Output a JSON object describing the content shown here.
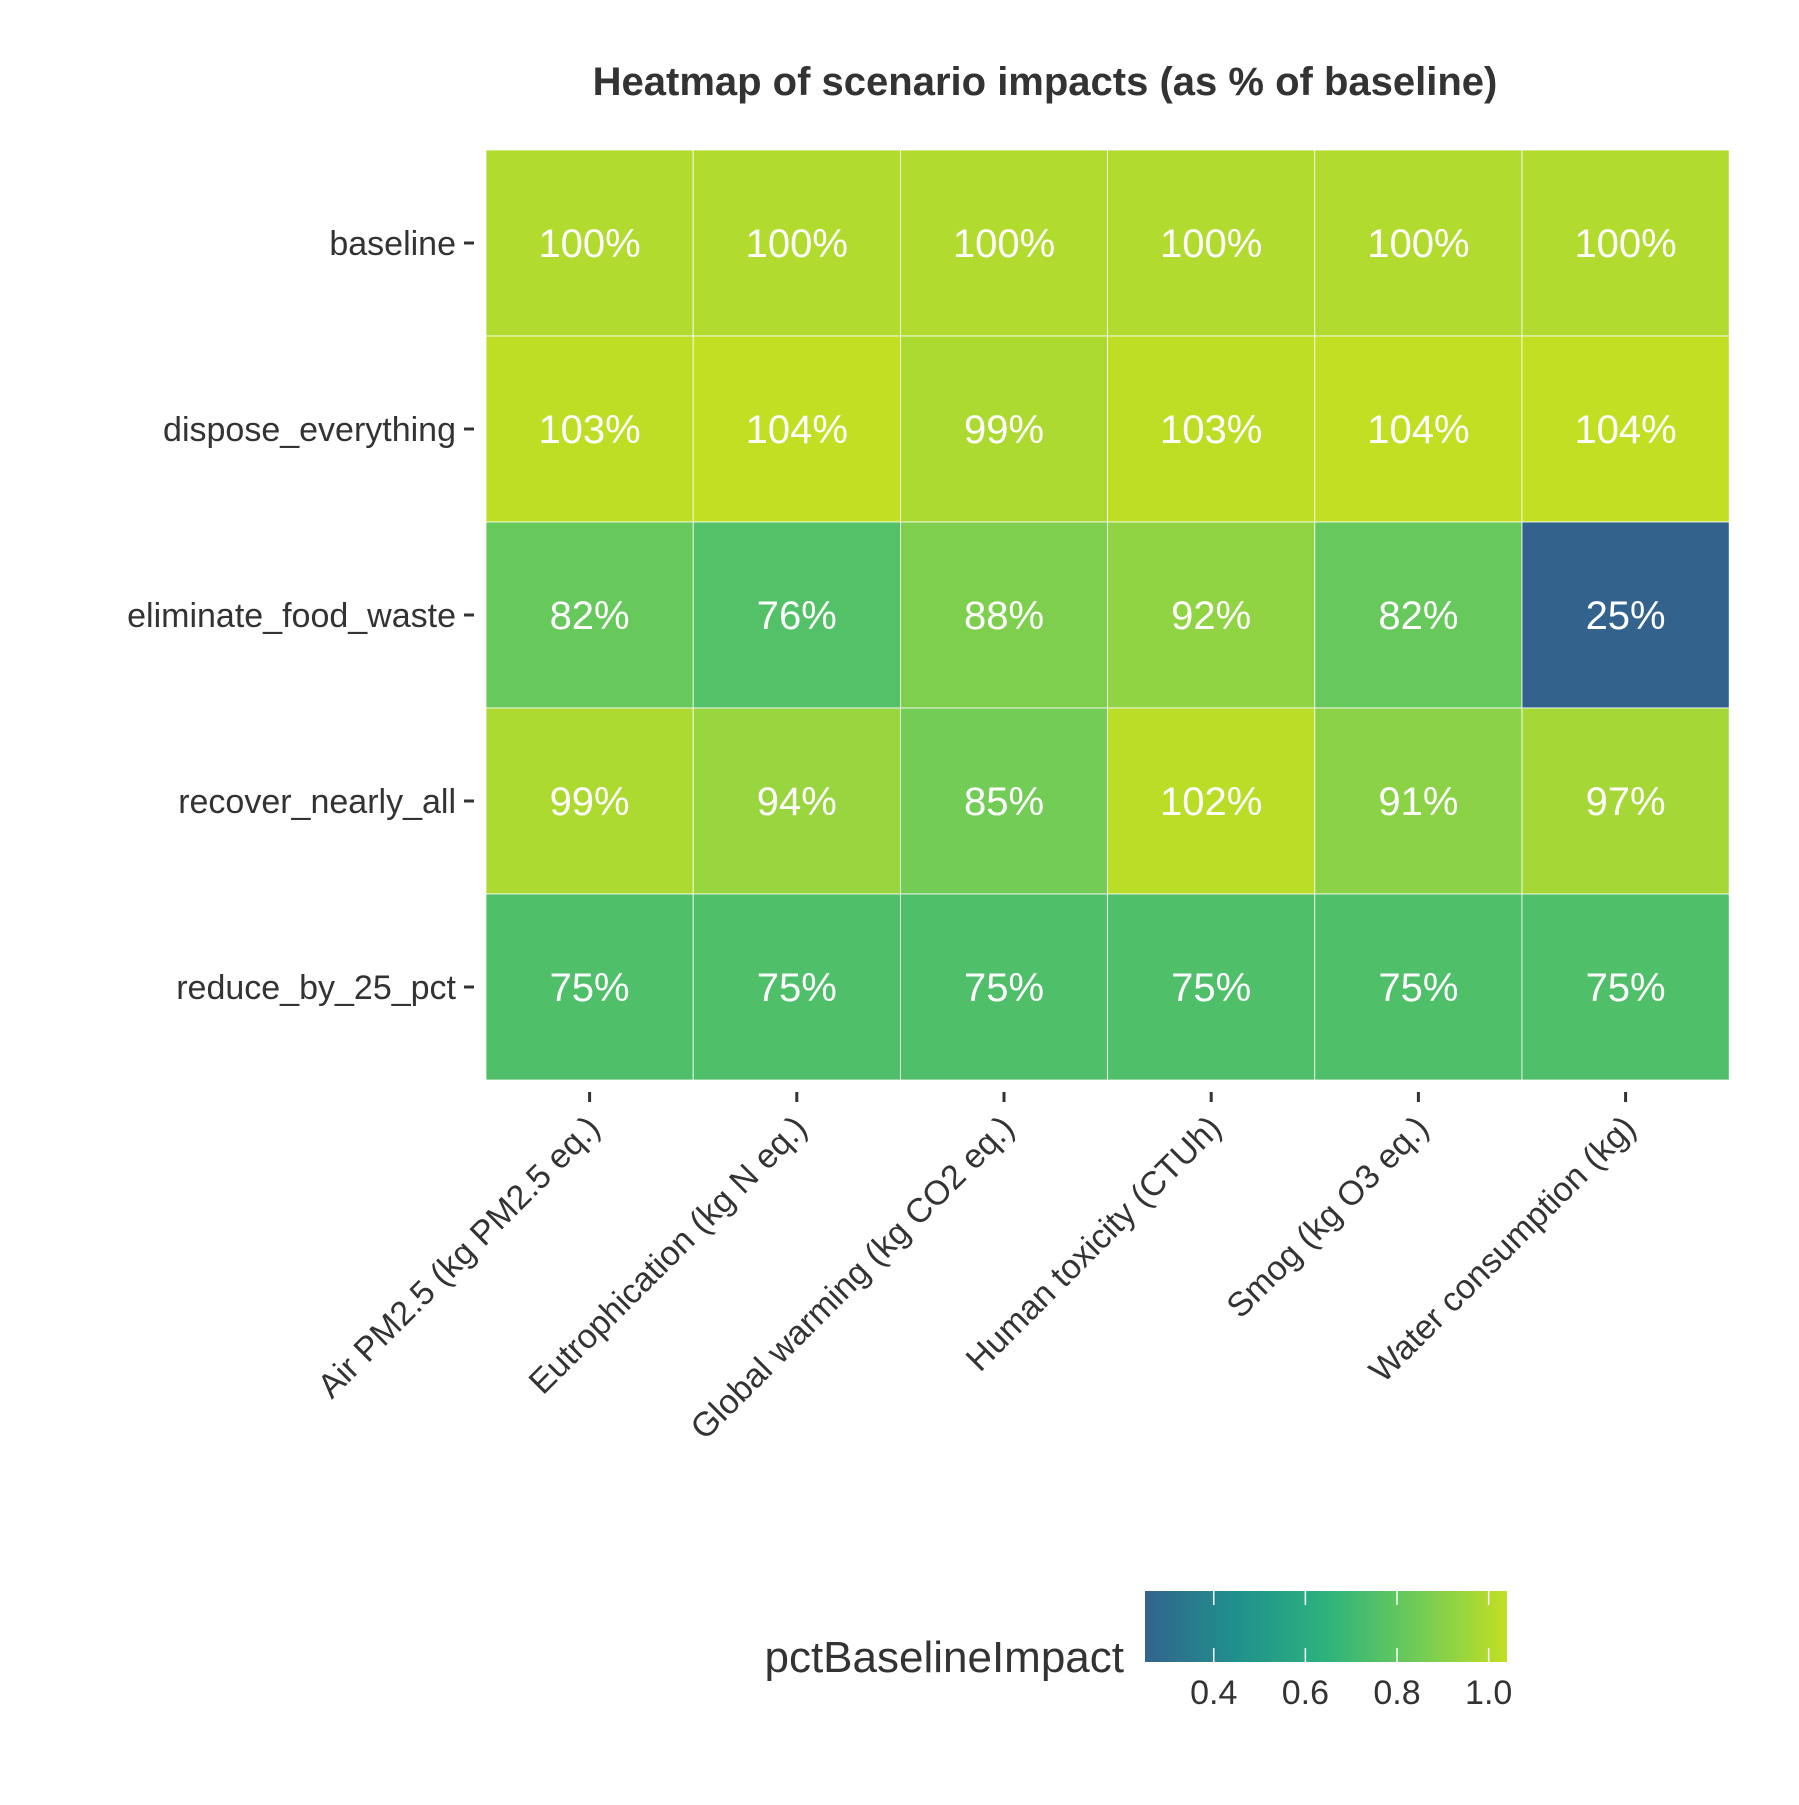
{
  "chart_data": {
    "type": "heatmap",
    "title": "Heatmap of scenario impacts (as % of baseline)",
    "xlabel": "",
    "ylabel": "",
    "rows": [
      "baseline",
      "dispose_everything",
      "eliminate_food_waste",
      "recover_nearly_all",
      "reduce_by_25_pct"
    ],
    "columns": [
      "Air PM2.5 (kg PM2.5 eq.)",
      "Eutrophication (kg N eq.)",
      "Global warming (kg CO2 eq.)",
      "Human toxicity (CTUh)",
      "Smog (kg O3 eq.)",
      "Water consumption (kg)"
    ],
    "values": [
      [
        1.0,
        1.0,
        1.0,
        1.0,
        1.0,
        1.0
      ],
      [
        1.03,
        1.04,
        0.99,
        1.03,
        1.04,
        1.04
      ],
      [
        0.82,
        0.76,
        0.88,
        0.92,
        0.82,
        0.25
      ],
      [
        0.99,
        0.94,
        0.85,
        1.02,
        0.91,
        0.97
      ],
      [
        0.75,
        0.75,
        0.75,
        0.75,
        0.75,
        0.75
      ]
    ],
    "labels": [
      [
        "100%",
        "100%",
        "100%",
        "100%",
        "100%",
        "100%"
      ],
      [
        "103%",
        "104%",
        "99%",
        "103%",
        "104%",
        "104%"
      ],
      [
        "82%",
        "76%",
        "88%",
        "92%",
        "82%",
        "25%"
      ],
      [
        "99%",
        "94%",
        "85%",
        "102%",
        "91%",
        "97%"
      ],
      [
        "75%",
        "75%",
        "75%",
        "75%",
        "75%",
        "75%"
      ]
    ],
    "legend": {
      "title": "pctBaselineImpact",
      "placement": "bottom",
      "range": [
        0.25,
        1.04
      ],
      "ticks": [
        0.4,
        0.6,
        0.8,
        1.0
      ],
      "tick_labels": [
        "0.4",
        "0.6",
        "0.8",
        "1.0"
      ]
    },
    "colorscale": "viridis-partial",
    "colors": {
      "low": "#33638d",
      "high": "#c2df23",
      "cell_border": "#ffffff",
      "cell_text": "#ffffff",
      "axis_text": "#333333"
    },
    "grid": false
  }
}
